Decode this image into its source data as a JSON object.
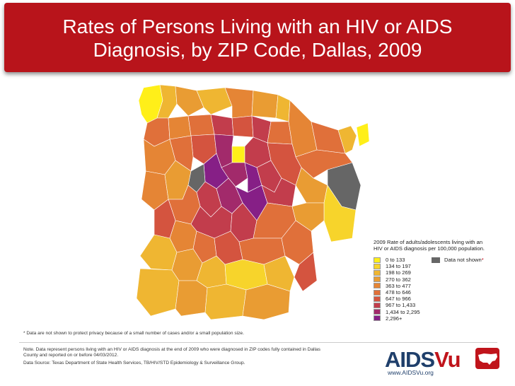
{
  "title": {
    "line1": "Rates of Persons Living with an HIV or AIDS",
    "line2": "Diagnosis, by ZIP Code, Dallas, 2009"
  },
  "legend": {
    "title_line1": "2009 Rate of adults/adolescents living with an",
    "title_line2": "HIV or AIDS diagnosis per 100,000 population.",
    "items": [
      {
        "label": "0 to 133",
        "color": "#ffef19"
      },
      {
        "label": "134 to 197",
        "color": "#f7d42b"
      },
      {
        "label": "198 to 269",
        "color": "#efb632"
      },
      {
        "label": "270 to 362",
        "color": "#e99c33"
      },
      {
        "label": "363 to 477",
        "color": "#e58535"
      },
      {
        "label": "478 to 646",
        "color": "#e0703a"
      },
      {
        "label": "647 to 966",
        "color": "#d4543f"
      },
      {
        "label": "967 to 1,433",
        "color": "#c23d4c"
      },
      {
        "label": "1,434 to 2,295",
        "color": "#a22a6b"
      },
      {
        "label": "2,296+",
        "color": "#861f86"
      }
    ],
    "data_not_shown": {
      "label": "Data not shown",
      "marker": "*",
      "color": "#666666"
    }
  },
  "footnote": "* Data are not shown to protect privacy because of a small number of cases and/or a small population size.",
  "note_line1": "Note. Data represent persons living with an HIV or AIDS diagnosis at the end of 2009 who were diagnosed in ZIP codes fully contained in Dallas",
  "note_line2": "County and reported on or before 04/03/2012.",
  "source": "Data Source: Texas Department of State Health Services, TB/HIV/STD Epidemiology & Surveillance Group.",
  "logo": {
    "part1": "AIDS",
    "part2": "Vu",
    "url": "www.AIDSVu.org"
  }
}
